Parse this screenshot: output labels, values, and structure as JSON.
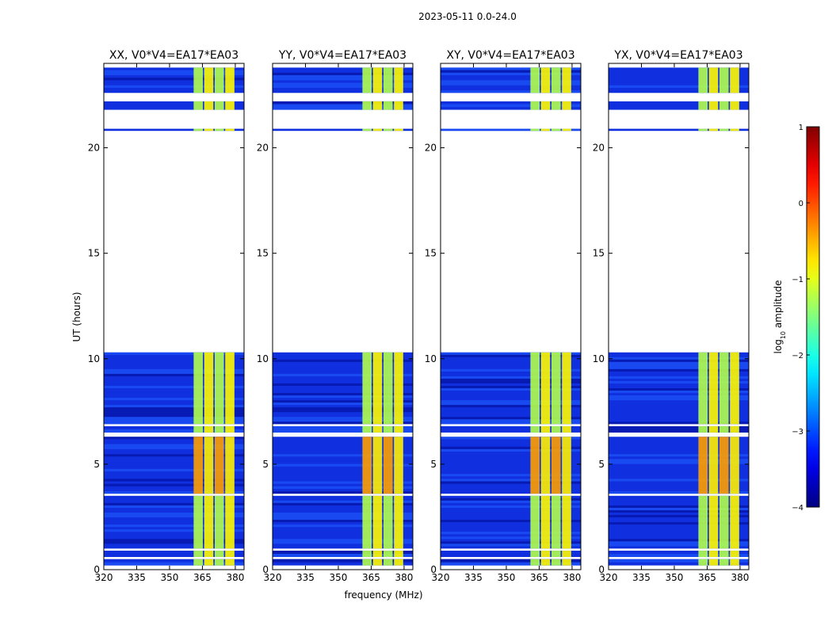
{
  "figure_title": "2023-05-11 0.0-24.0",
  "colors": {
    "background": "#ffffff",
    "low": "#0a1fd8",
    "high": "#7f0000"
  },
  "chart_data": {
    "type": "heatmap",
    "title": "2023-05-11 0.0-24.0",
    "xlabel": "frequency (MHz)",
    "ylabel": "UT (hours)",
    "xlim": [
      320,
      384
    ],
    "ylim": [
      0,
      24
    ],
    "xticks": [
      "320",
      "335",
      "350",
      "365",
      "380"
    ],
    "yticks": [
      "0",
      "5",
      "10",
      "15",
      "20"
    ],
    "panels": [
      {
        "title": "XX, V0*V4=EA17*EA03",
        "strong_band_start_mhz": 361
      },
      {
        "title": "YY, V0*V4=EA17*EA03",
        "strong_band_start_mhz": 361
      },
      {
        "title": "XY, V0*V4=EA17*EA03",
        "strong_band_start_mhz": 361
      },
      {
        "title": "YX, V0*V4=EA17*EA03",
        "strong_band_start_mhz": 361
      }
    ],
    "data_segments_ut": [
      [
        0.2,
        0.5
      ],
      [
        0.6,
        0.9
      ],
      [
        1.0,
        3.5
      ],
      [
        3.6,
        6.3
      ],
      [
        6.5,
        6.8
      ],
      [
        6.9,
        10.3
      ],
      [
        20.8,
        20.9
      ],
      [
        21.8,
        22.2
      ],
      [
        22.6,
        23.8
      ]
    ],
    "colorbar": {
      "label_prefix": "log",
      "label_sub": "10",
      "label_suffix": " amplitude",
      "range": [
        -4,
        1
      ],
      "ticks": [
        "1",
        "0",
        "−1",
        "−2",
        "−3",
        "−4"
      ],
      "tick_values": [
        1,
        0,
        -1,
        -2,
        -3,
        -4
      ],
      "colormap": "jet"
    }
  }
}
